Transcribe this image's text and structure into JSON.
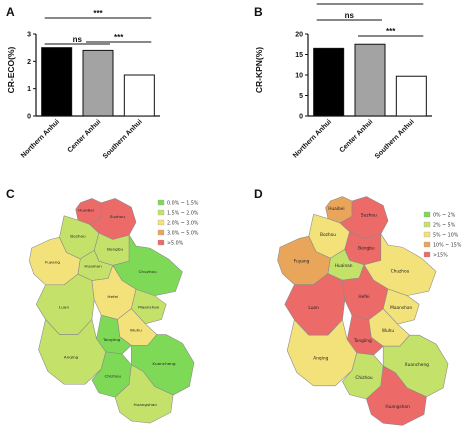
{
  "panels": {
    "A": "A",
    "B": "B",
    "C": "C",
    "D": "D"
  },
  "chart_data": [
    {
      "panel": "A",
      "type": "bar",
      "ylabel": "CR-ECO(%)",
      "ylim": [
        0,
        3
      ],
      "yticks": [
        "0",
        "1",
        "2",
        "3"
      ],
      "categories": [
        "Northern Anhui",
        "Center Anhui",
        "Southern Anhui"
      ],
      "values": [
        2.5,
        2.4,
        1.5
      ],
      "bar_fills": [
        "#000000",
        "#a3a3a3",
        "#ffffff"
      ],
      "significance": [
        {
          "label": "ns",
          "from": 0,
          "to": 1
        },
        {
          "label": "***",
          "from": 0,
          "to": 2
        },
        {
          "label": "***",
          "from": 1,
          "to": 2
        }
      ]
    },
    {
      "panel": "B",
      "type": "bar",
      "ylabel": "CR-KPN(%)",
      "ylim": [
        0,
        20
      ],
      "yticks": [
        "0",
        "5",
        "10",
        "15",
        "20"
      ],
      "categories": [
        "Northern Anhui",
        "Center Anhui",
        "Southern Anhui"
      ],
      "values": [
        16.5,
        17.5,
        9.7
      ],
      "bar_fills": [
        "#000000",
        "#a3a3a3",
        "#ffffff"
      ],
      "significance": [
        {
          "label": "ns",
          "from": 0,
          "to": 1
        },
        {
          "label": "***",
          "from": 0,
          "to": 2
        },
        {
          "label": "***",
          "from": 1,
          "to": 2
        }
      ]
    }
  ],
  "maps": [
    {
      "panel": "C",
      "legend": [
        {
          "label": "0.0% ~ 1.5%",
          "color": "#7ed957"
        },
        {
          "label": "1.5% ~ 2.0%",
          "color": "#c4e26a"
        },
        {
          "label": "2.0% ~ 3.0%",
          "color": "#f3e27a"
        },
        {
          "label": "3.0% ~ 5.0%",
          "color": "#e9a55a"
        },
        {
          "label": ">5.0%",
          "color": "#ec6a68"
        }
      ],
      "regions": [
        {
          "name": "Huaibei",
          "bin": 4
        },
        {
          "name": "Suzhou",
          "bin": 4
        },
        {
          "name": "Bozhou",
          "bin": 1
        },
        {
          "name": "Fuyang",
          "bin": 2
        },
        {
          "name": "Bengbu",
          "bin": 1
        },
        {
          "name": "Huainan",
          "bin": 1
        },
        {
          "name": "Chuzhou",
          "bin": 0
        },
        {
          "name": "Luan",
          "bin": 1
        },
        {
          "name": "Hefei",
          "bin": 2
        },
        {
          "name": "Maanshan",
          "bin": 1
        },
        {
          "name": "Wuhu",
          "bin": 2
        },
        {
          "name": "Tongling",
          "bin": 0
        },
        {
          "name": "Anqing",
          "bin": 1
        },
        {
          "name": "Chizhou",
          "bin": 0
        },
        {
          "name": "Xuancheng",
          "bin": 0
        },
        {
          "name": "Huangshan",
          "bin": 1
        }
      ]
    },
    {
      "panel": "D",
      "legend": [
        {
          "label": "0% ~ 2%",
          "color": "#7ed957"
        },
        {
          "label": "2% ~ 5%",
          "color": "#c4e26a"
        },
        {
          "label": "5% ~ 10%",
          "color": "#f3e27a"
        },
        {
          "label": "10% ~ 15%",
          "color": "#e9a55a"
        },
        {
          "label": ">15%",
          "color": "#ec6a68"
        }
      ],
      "regions": [
        {
          "name": "Huaibei",
          "bin": 3
        },
        {
          "name": "Suzhou",
          "bin": 4
        },
        {
          "name": "Bozhou",
          "bin": 2
        },
        {
          "name": "Fuyang",
          "bin": 3
        },
        {
          "name": "Bengbu",
          "bin": 4
        },
        {
          "name": "Huainan",
          "bin": 1
        },
        {
          "name": "Chuzhou",
          "bin": 2
        },
        {
          "name": "Luan",
          "bin": 4
        },
        {
          "name": "Hefei",
          "bin": 4
        },
        {
          "name": "Maanshan",
          "bin": 2
        },
        {
          "name": "Wuhu",
          "bin": 2
        },
        {
          "name": "Tongling",
          "bin": 4
        },
        {
          "name": "Anqing",
          "bin": 2
        },
        {
          "name": "Chizhou",
          "bin": 1
        },
        {
          "name": "Xuancheng",
          "bin": 1
        },
        {
          "name": "Huangshan",
          "bin": 4
        }
      ]
    }
  ]
}
